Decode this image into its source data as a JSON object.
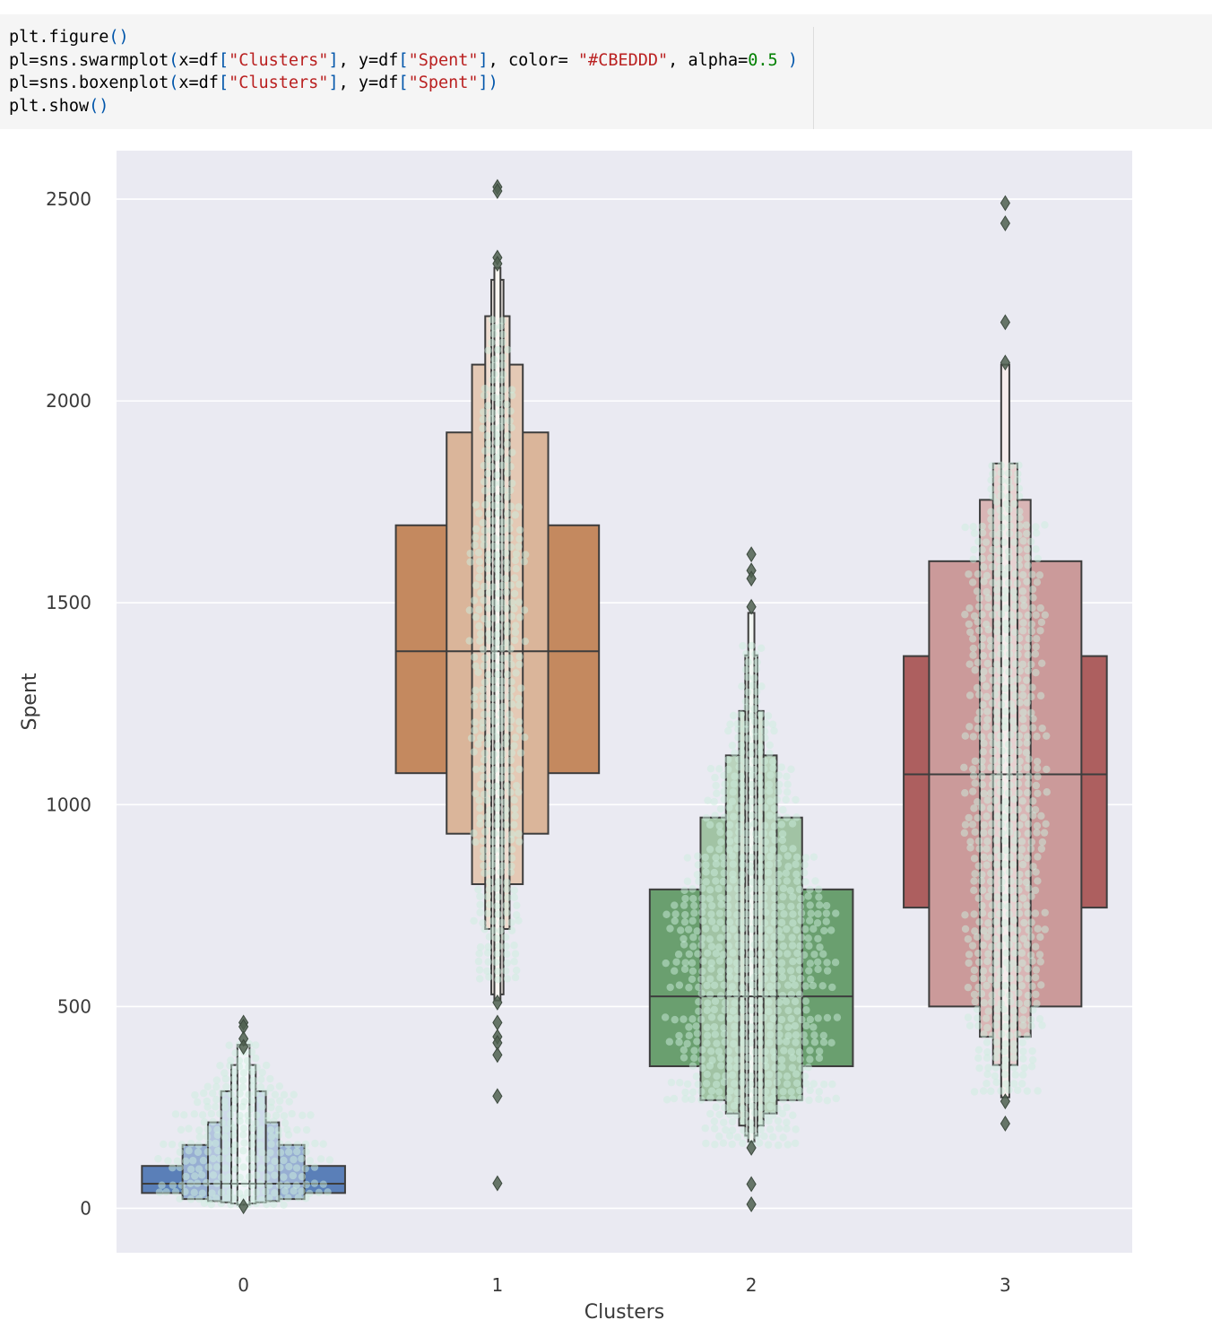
{
  "code_cell": {
    "lines": [
      [
        {
          "t": "plt.figure",
          "c": "plain"
        },
        {
          "t": "()",
          "c": "paren"
        }
      ],
      [
        {
          "t": "pl=sns.swarmplot",
          "c": "plain"
        },
        {
          "t": "(",
          "c": "paren"
        },
        {
          "t": "x=df",
          "c": "plain"
        },
        {
          "t": "[",
          "c": "paren"
        },
        {
          "t": "\"Clusters\"",
          "c": "str"
        },
        {
          "t": "]",
          "c": "paren"
        },
        {
          "t": ", y=df",
          "c": "plain"
        },
        {
          "t": "[",
          "c": "paren"
        },
        {
          "t": "\"Spent\"",
          "c": "str"
        },
        {
          "t": "]",
          "c": "paren"
        },
        {
          "t": ", color= ",
          "c": "plain"
        },
        {
          "t": "\"#CBEDDD\"",
          "c": "str"
        },
        {
          "t": ", alpha=",
          "c": "plain"
        },
        {
          "t": "0.5",
          "c": "num"
        },
        {
          "t": " )",
          "c": "paren"
        }
      ],
      [
        {
          "t": "pl=sns.boxenplot",
          "c": "plain"
        },
        {
          "t": "(",
          "c": "paren"
        },
        {
          "t": "x=df",
          "c": "plain"
        },
        {
          "t": "[",
          "c": "paren"
        },
        {
          "t": "\"Clusters\"",
          "c": "str"
        },
        {
          "t": "]",
          "c": "paren"
        },
        {
          "t": ", y=df",
          "c": "plain"
        },
        {
          "t": "[",
          "c": "paren"
        },
        {
          "t": "\"Spent\"",
          "c": "str"
        },
        {
          "t": "])",
          "c": "paren"
        }
      ],
      [
        {
          "t": "plt.show",
          "c": "plain"
        },
        {
          "t": "()",
          "c": "paren"
        }
      ]
    ]
  },
  "chart_data": {
    "type": "boxen",
    "title": "",
    "xlabel": "Clusters",
    "ylabel": "Spent",
    "categories": [
      "0",
      "1",
      "2",
      "3"
    ],
    "ylim": [
      -110,
      2620
    ],
    "yticks": [
      0,
      500,
      1000,
      1500,
      2000,
      2500
    ],
    "ytick_labels": [
      "0",
      "500",
      "1000",
      "1500",
      "2000",
      "2500"
    ],
    "grid": true,
    "swarm_color": "#CBEDDD",
    "swarm_alpha": 0.5,
    "edge_color": "#3d3d3d",
    "clusters": [
      {
        "category": "0",
        "color": "#5a7fb8",
        "median": 61,
        "boxes": [
          [
            38,
            105,
            1
          ],
          [
            23,
            157,
            0.6
          ],
          [
            18,
            213,
            0.35
          ],
          [
            15,
            290,
            0.22
          ],
          [
            12,
            355,
            0.12
          ],
          [
            9,
            405,
            0.06
          ]
        ],
        "outliers": [
          460,
          450,
          420,
          400,
          5
        ],
        "swarm": [
          [
            5,
            30,
            0.7
          ],
          [
            30,
            170,
            1.0
          ],
          [
            170,
            240,
            0.7
          ],
          [
            240,
            310,
            0.55
          ],
          [
            310,
            360,
            0.35
          ],
          [
            360,
            415,
            0.2
          ]
        ]
      },
      {
        "category": "1",
        "color": "#c4895f",
        "median": 1380,
        "boxes": [
          [
            1078,
            1692,
            1
          ],
          [
            928,
            1922,
            0.5
          ],
          [
            803,
            2090,
            0.25
          ],
          [
            692,
            2210,
            0.12
          ],
          [
            530,
            2300,
            0.06
          ],
          [
            515,
            2330,
            0.03
          ]
        ],
        "outliers": [
          2530,
          2520,
          2355,
          2340,
          510,
          460,
          425,
          410,
          380,
          278,
          62
        ],
        "swarm": [
          [
            560,
            900,
            0.25
          ],
          [
            900,
            1750,
            0.3
          ],
          [
            1750,
            2040,
            0.2
          ],
          [
            2040,
            2210,
            0.12
          ]
        ]
      },
      {
        "category": "2",
        "color": "#6a9f6f",
        "median": 525,
        "boxes": [
          [
            352,
            790,
            1
          ],
          [
            268,
            968,
            0.5
          ],
          [
            235,
            1122,
            0.25
          ],
          [
            205,
            1232,
            0.12
          ],
          [
            180,
            1370,
            0.06
          ],
          [
            165,
            1475,
            0.03
          ]
        ],
        "outliers": [
          1620,
          1580,
          1560,
          1490,
          150,
          60,
          10
        ],
        "swarm": [
          [
            150,
            260,
            0.55
          ],
          [
            260,
            880,
            0.9
          ],
          [
            880,
            1100,
            0.5
          ],
          [
            1100,
            1230,
            0.3
          ],
          [
            1230,
            1400,
            0.12
          ]
        ]
      },
      {
        "category": "3",
        "color": "#ad5f5f",
        "median": 1075,
        "boxes": [
          [
            745,
            1368,
            1
          ],
          [
            500,
            1603,
            0.75
          ],
          [
            425,
            1755,
            0.25
          ],
          [
            355,
            1845,
            0.12
          ],
          [
            275,
            2090,
            0.04
          ]
        ],
        "outliers": [
          2490,
          2440,
          2195,
          2095,
          265,
          210
        ],
        "swarm": [
          [
            280,
            440,
            0.35
          ],
          [
            440,
            1700,
            0.45
          ],
          [
            1700,
            1850,
            0.2
          ]
        ]
      }
    ]
  }
}
